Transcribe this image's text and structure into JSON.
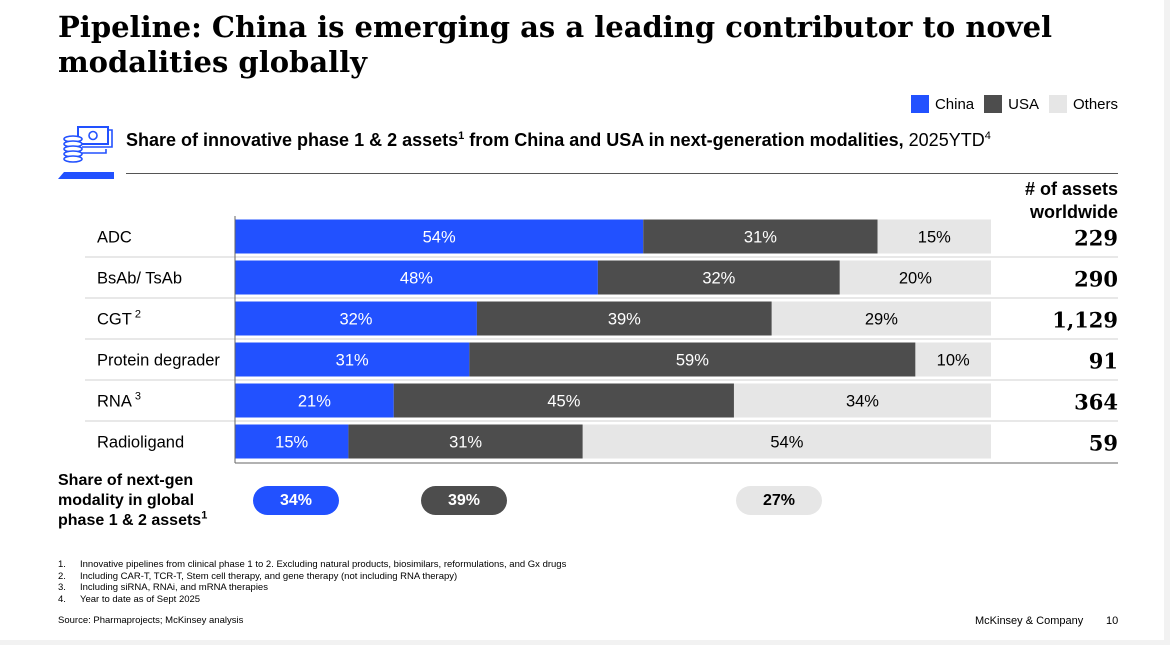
{
  "title": "Pipeline: China is emerging as a leading contributor to novel modalities globally",
  "legend": [
    {
      "label": "China",
      "color": "#2251ff"
    },
    {
      "label": "USA",
      "color": "#4d4d4d"
    },
    {
      "label": "Others",
      "color": "#e6e6e6"
    }
  ],
  "subtitle": {
    "bold": "Share of innovative phase 1 & 2 assets",
    "bold_sup": "1",
    "bold_rest": " from China and USA in next-generation modalities,",
    "normal": " 2025YTD",
    "normal_sup": "4"
  },
  "assets_header": {
    "line1": "# of assets",
    "line2": "worldwide"
  },
  "chart_data": {
    "type": "bar",
    "orientation": "horizontal",
    "stacked": true,
    "normalized_percent": true,
    "categories": [
      "ADC",
      "BsAb/ TsAb",
      "CGT",
      "Protein degrader",
      "RNA",
      "Radioligand"
    ],
    "category_sups": [
      "",
      "",
      "2",
      "",
      "3",
      ""
    ],
    "series": [
      {
        "name": "China",
        "color": "#2251ff",
        "values": [
          54,
          48,
          32,
          31,
          21,
          15
        ]
      },
      {
        "name": "USA",
        "color": "#4d4d4d",
        "values": [
          31,
          32,
          39,
          59,
          45,
          31
        ]
      },
      {
        "name": "Others",
        "color": "#e6e6e6",
        "values": [
          15,
          20,
          29,
          10,
          34,
          54
        ]
      }
    ],
    "assets_worldwide": [
      "229",
      "290",
      "1,129",
      "91",
      "364",
      "59"
    ],
    "value_suffix": "%",
    "xlim": [
      0,
      100
    ]
  },
  "overall_share": {
    "label_lines": [
      "Share of next-gen",
      "modality in global",
      "phase 1 & 2 assets"
    ],
    "label_sup": "1",
    "values": [
      {
        "name": "China",
        "value": "34%"
      },
      {
        "name": "USA",
        "value": "39%"
      },
      {
        "name": "Others",
        "value": "27%"
      }
    ]
  },
  "footnotes": [
    {
      "num": "1.",
      "text": "Innovative pipelines from clinical phase 1 to 2. Excluding natural products, biosimilars, reformulations, and Gx drugs"
    },
    {
      "num": "2.",
      "text": "Including CAR-T, TCR-T, Stem cell therapy, and gene therapy (not including RNA therapy)"
    },
    {
      "num": "3.",
      "text": "Including siRNA, RNAi, and mRNA therapies"
    },
    {
      "num": "4.",
      "text": "Year to date as of Sept 2025"
    }
  ],
  "source": "Source: Pharmaprojects; McKinsey analysis",
  "company": "McKinsey & Company",
  "page_number": "10"
}
